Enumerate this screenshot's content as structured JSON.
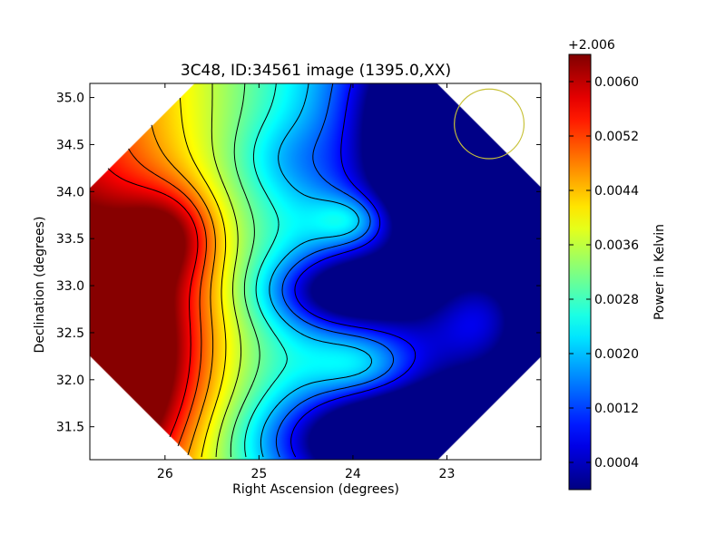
{
  "chart_data": {
    "type": "heatmap",
    "title": "3C48, ID:34561 image (1395.0,XX)",
    "xlabel": "Right Ascension (degrees)",
    "ylabel": "Declination (degrees)",
    "xlim": [
      26.8,
      22.0
    ],
    "ylim": [
      31.15,
      35.15
    ],
    "xticks": [
      26,
      25,
      24,
      23
    ],
    "xtick_labels": [
      "26",
      "25",
      "24",
      "23"
    ],
    "yticks": [
      31.5,
      32.0,
      32.5,
      33.0,
      33.5,
      34.0,
      34.5,
      35.0
    ],
    "ytick_labels": [
      "31.5",
      "32.0",
      "32.5",
      "33.0",
      "33.5",
      "34.0",
      "34.5",
      "35.0"
    ],
    "colorbar": {
      "label": "Power in Kelvin",
      "offset_label": "+2.006",
      "range": [
        0.0,
        0.0064
      ],
      "ticks": [
        0.0004,
        0.0012,
        0.002,
        0.0028,
        0.0036,
        0.0044,
        0.0052,
        0.006
      ],
      "tick_labels": [
        "0.0004",
        "0.0012",
        "0.0020",
        "0.0028",
        "0.0036",
        "0.0044",
        "0.0052",
        "0.0060"
      ],
      "colormap": "jet"
    },
    "beam_circle": {
      "ra": 22.55,
      "dec": 34.72,
      "radius_deg": 0.37,
      "color": "#c8c23a"
    },
    "contour_levels": [
      0.0008,
      0.0014,
      0.002,
      0.0026,
      0.0031,
      0.0036,
      0.0041,
      0.0046,
      0.0051,
      0.0056
    ],
    "features": [
      {
        "kind": "max",
        "ra": 26.6,
        "dec": 32.5,
        "sx": 0.7,
        "sy": 0.85,
        "amp": 0.0034
      },
      {
        "kind": "max",
        "ra": 25.95,
        "dec": 33.55,
        "sx": 0.35,
        "sy": 0.35,
        "amp": 0.0016
      },
      {
        "kind": "max",
        "ra": 26.7,
        "dec": 31.6,
        "sx": 0.6,
        "sy": 0.6,
        "amp": 0.0012
      },
      {
        "kind": "min",
        "ra": 24.1,
        "dec": 32.95,
        "sx": 0.55,
        "sy": 0.27,
        "amp": 0.0025
      },
      {
        "kind": "min",
        "ra": 23.5,
        "dec": 31.35,
        "sx": 0.9,
        "sy": 0.35,
        "amp": 0.0038
      },
      {
        "kind": "min",
        "ra": 23.2,
        "dec": 34.4,
        "sx": 0.55,
        "sy": 0.8,
        "amp": 0.0026
      },
      {
        "kind": "min",
        "ra": 22.9,
        "dec": 35.0,
        "sx": 0.6,
        "sy": 0.4,
        "amp": 0.001
      },
      {
        "kind": "min",
        "ra": 24.7,
        "dec": 34.35,
        "sx": 0.4,
        "sy": 0.3,
        "amp": 0.0006
      },
      {
        "kind": "max",
        "ra": 24.0,
        "dec": 33.7,
        "sx": 0.3,
        "sy": 0.2,
        "amp": 0.0014
      },
      {
        "kind": "max",
        "ra": 22.65,
        "dec": 32.65,
        "sx": 0.35,
        "sy": 0.35,
        "amp": 0.0012
      },
      {
        "kind": "max",
        "ra": 23.9,
        "dec": 32.15,
        "sx": 0.4,
        "sy": 0.25,
        "amp": 0.0011
      }
    ],
    "base_gradient": {
      "ra0": 25.0,
      "slope_per_deg": 0.0014,
      "base": 0.0029
    }
  }
}
